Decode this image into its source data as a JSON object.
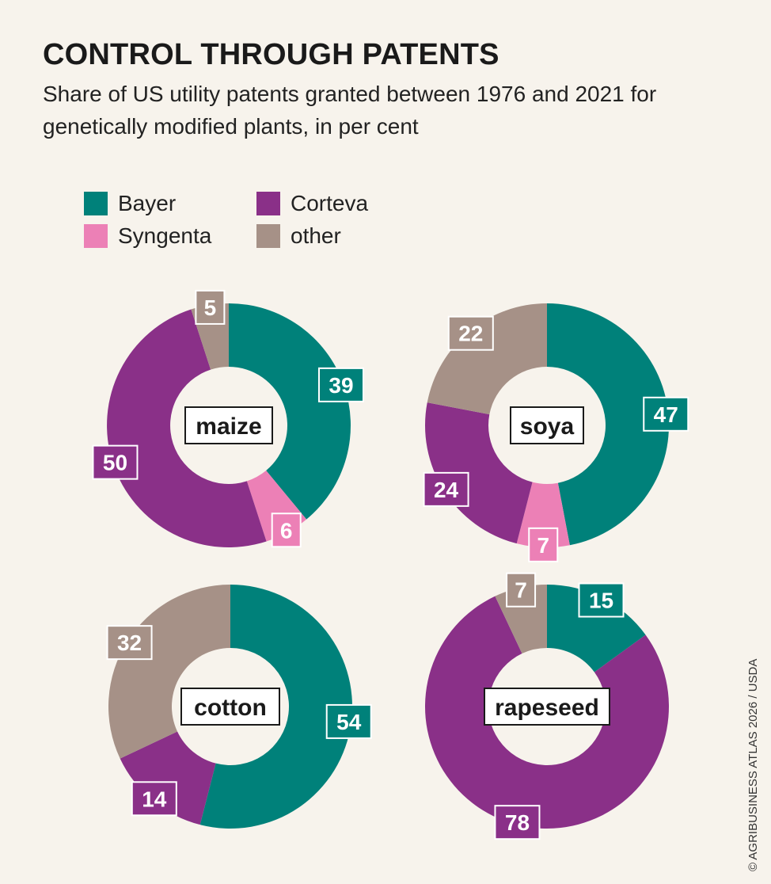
{
  "title": "CONTROL THROUGH PATENTS",
  "subtitle": "Share of US utility patents granted between 1976 and 2021 for genetically modified plants, in per cent",
  "legend": [
    {
      "label": "Bayer",
      "color": "#00817a"
    },
    {
      "label": "Corteva",
      "color": "#8a3088"
    },
    {
      "label": "Syngenta",
      "color": "#ec80b6"
    },
    {
      "label": "other",
      "color": "#a69187"
    }
  ],
  "credit": "© AGRIBUSINESS ATLAS 2026 / USDA",
  "chart_data": [
    {
      "type": "pie",
      "name": "maize",
      "segments": [
        {
          "company": "Bayer",
          "value": 39
        },
        {
          "company": "Syngenta",
          "value": 6
        },
        {
          "company": "Corteva",
          "value": 50
        },
        {
          "company": "other",
          "value": 5
        }
      ]
    },
    {
      "type": "pie",
      "name": "soya",
      "segments": [
        {
          "company": "Bayer",
          "value": 47
        },
        {
          "company": "Syngenta",
          "value": 7
        },
        {
          "company": "Corteva",
          "value": 24
        },
        {
          "company": "other",
          "value": 22
        }
      ]
    },
    {
      "type": "pie",
      "name": "cotton",
      "segments": [
        {
          "company": "Bayer",
          "value": 54
        },
        {
          "company": "Corteva",
          "value": 14
        },
        {
          "company": "other",
          "value": 32
        }
      ]
    },
    {
      "type": "pie",
      "name": "rapeseed",
      "segments": [
        {
          "company": "Bayer",
          "value": 15
        },
        {
          "company": "Corteva",
          "value": 78
        },
        {
          "company": "other",
          "value": 7
        }
      ]
    }
  ]
}
